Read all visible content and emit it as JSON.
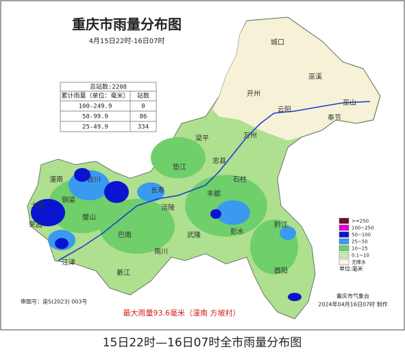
{
  "header": {
    "title": "重庆市雨量分布图",
    "subtitle": "4月15日22时-16日07时"
  },
  "table": {
    "title": "总站数:2208",
    "columns": [
      "累计雨量（单位：毫米）",
      "站数"
    ],
    "rows": [
      [
        "100-249.9",
        "0"
      ],
      [
        "50-99.9",
        "86"
      ],
      [
        "25-49.9",
        "334"
      ]
    ]
  },
  "legend": {
    "items": [
      {
        "label": ">=250",
        "color": "#6b1030"
      },
      {
        "label": "100~250",
        "color": "#e000d8"
      },
      {
        "label": "50~100",
        "color": "#0a14d0"
      },
      {
        "label": "25~50",
        "color": "#3a9af0"
      },
      {
        "label": "10~25",
        "color": "#6fcf6a"
      },
      {
        "label": "0.1~10",
        "color": "#c4eeae"
      },
      {
        "label": "无降水",
        "color": "#fbf7e6"
      }
    ],
    "unit": "单位:毫米"
  },
  "districts": [
    "城口",
    "巫溪",
    "开州",
    "云阳",
    "奉节",
    "巫山",
    "万州",
    "梁平",
    "忠县",
    "垫江",
    "石柱",
    "长寿",
    "丰都",
    "潼南",
    "合川",
    "铜梁",
    "大足",
    "荣昌",
    "璧山",
    "巴南",
    "涪陵",
    "武隆",
    "彭水",
    "黔江",
    "南川",
    "綦江",
    "江津",
    "酉阳"
  ],
  "footer": {
    "approval": "审图号：渝S(2023) 003号",
    "max_rain": "最大雨量93.6毫米（潼南 方坡村）",
    "agency": "重庆市气象台",
    "made": "2024年04月16日07时 制作"
  },
  "caption": "15日22时—16日07时全市雨量分布图"
}
